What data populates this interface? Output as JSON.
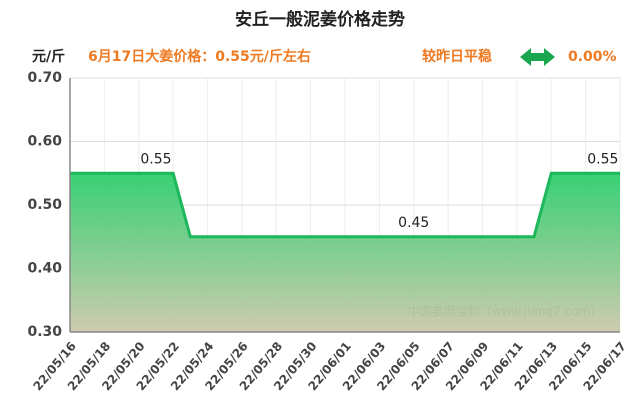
{
  "chart_data": {
    "type": "area",
    "title": "安丘一般泥姜价格走势",
    "subtitle": "6月17日大姜价格：0.55元/斤左右",
    "comparison_label": "较昨日平稳",
    "change": "0.00%",
    "y_label": "元/斤",
    "watermark": "中国姜网监制（www.jiang7.com）",
    "categories": [
      "22/05/16",
      null,
      "22/05/18",
      null,
      "22/05/20",
      null,
      "22/05/22",
      null,
      "22/05/24",
      null,
      "22/05/26",
      null,
      "22/05/28",
      null,
      "22/05/30",
      null,
      "22/06/01",
      null,
      "22/06/03",
      null,
      "22/06/05",
      null,
      "22/06/07",
      null,
      "22/06/09",
      null,
      "22/06/11",
      null,
      "22/06/13",
      null,
      "22/06/15",
      null,
      "22/06/17"
    ],
    "values": [
      0.55,
      0.55,
      0.55,
      0.55,
      0.55,
      0.55,
      0.55,
      0.45,
      0.45,
      0.45,
      0.45,
      0.45,
      0.45,
      0.45,
      0.45,
      0.45,
      0.45,
      0.45,
      0.45,
      0.45,
      0.45,
      0.45,
      0.45,
      0.45,
      0.45,
      0.45,
      0.45,
      0.45,
      0.55,
      0.55,
      0.55,
      0.55,
      0.55
    ],
    "value_labels": [
      null,
      null,
      null,
      null,
      null,
      "0.55",
      null,
      null,
      null,
      null,
      null,
      null,
      null,
      null,
      null,
      null,
      null,
      null,
      null,
      null,
      "0.45",
      null,
      null,
      null,
      null,
      null,
      null,
      null,
      null,
      null,
      null,
      "0.55",
      null
    ],
    "color": "#1db75c",
    "ylim": [
      0.3,
      0.7
    ],
    "yticks": [
      {
        "value": 0.3,
        "label": "0.30"
      },
      {
        "value": 0.4,
        "label": "0.40"
      },
      {
        "value": 0.5,
        "label": "0.50"
      },
      {
        "value": 0.6,
        "label": "0.60"
      },
      {
        "value": 0.7,
        "label": "0.70"
      }
    ],
    "grid": true
  }
}
